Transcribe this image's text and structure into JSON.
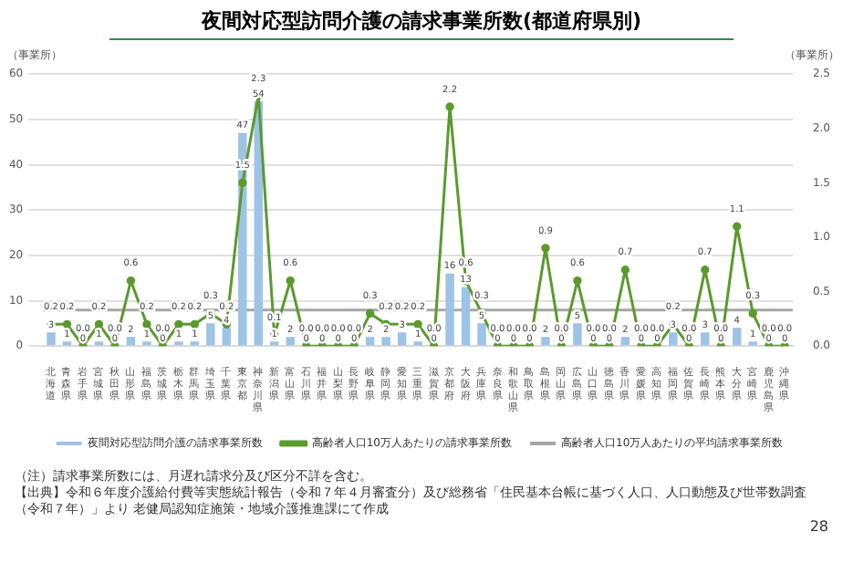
{
  "chart_data": {
    "type": "bar",
    "title": "夜間対応型訪問介護の請求事業所数(都道府県別)",
    "ylabel": "（事業所）",
    "y2label": "（事業所）",
    "categories": [
      "北海道",
      "青森県",
      "岩手県",
      "宮城県",
      "秋田県",
      "山形県",
      "福島県",
      "茨城県",
      "栃木県",
      "群馬県",
      "埼玉県",
      "千葉県",
      "東京都",
      "神奈川県",
      "新潟県",
      "富山県",
      "石川県",
      "福井県",
      "山梨県",
      "長野県",
      "岐阜県",
      "静岡県",
      "愛知県",
      "三重県",
      "滋賀県",
      "京都府",
      "大阪府",
      "兵庫県",
      "奈良県",
      "和歌山県",
      "鳥取県",
      "島根県",
      "岡山県",
      "広島県",
      "山口県",
      "徳島県",
      "香川県",
      "愛媛県",
      "高知県",
      "福岡県",
      "佐賀県",
      "長崎県",
      "熊本県",
      "大分県",
      "宮崎県",
      "鹿児島県",
      "沖縄県"
    ],
    "series": [
      {
        "name": "夜間対応型訪問介護の請求事業所数",
        "color": "#9dc3e6",
        "values": [
          3,
          1,
          0,
          1,
          0,
          2,
          1,
          0,
          1,
          1,
          5,
          4,
          47,
          54,
          1,
          2,
          0,
          0,
          0,
          0,
          2,
          2,
          3,
          1,
          0,
          16,
          13,
          5,
          0,
          0,
          0,
          2,
          0,
          5,
          0,
          0,
          2,
          0,
          0,
          3,
          0,
          3,
          0,
          4,
          1,
          0,
          0
        ],
        "value_labels": [
          "3",
          "1",
          "0",
          "1",
          "0",
          "2",
          "1",
          "0",
          "1",
          "1",
          "5",
          "4",
          "47",
          "54",
          "1",
          "2",
          "0",
          "0",
          "0",
          "0",
          "2",
          "2",
          "3",
          "1",
          "0",
          "16",
          "13",
          "5",
          "0",
          "0",
          "0",
          "2",
          "0",
          "5",
          "0",
          "0",
          "2",
          "0",
          "0",
          "3",
          "0",
          "3",
          "0",
          "4",
          "1",
          "0",
          "0"
        ]
      },
      {
        "name": "高齢者人口10万人あたりの請求事業所数",
        "type": "line",
        "axis": "y2",
        "color": "#5b9a2e",
        "marker": "circle",
        "values": [
          0.2,
          0.2,
          0.0,
          0.2,
          0.0,
          0.6,
          0.2,
          0.0,
          0.2,
          0.2,
          0.3,
          0.2,
          1.5,
          2.3,
          0.1,
          0.6,
          0.0,
          0.0,
          0.0,
          0.0,
          0.3,
          0.2,
          0.2,
          0.2,
          0.0,
          2.2,
          0.6,
          0.3,
          0.0,
          0.0,
          0.0,
          0.9,
          0.0,
          0.6,
          0.0,
          0.0,
          0.7,
          0.0,
          0.0,
          0.2,
          0.0,
          0.7,
          0.0,
          1.1,
          0.3,
          0.0,
          0.0
        ],
        "value_labels": [
          "0.2",
          "0.2",
          "0.0",
          "0.2",
          "0.0",
          "0.6",
          "0.2",
          "0.0",
          "0.2",
          "0.2",
          "0.3",
          "0.2",
          "1.5",
          "2.3",
          "0.1",
          "0.6",
          "0.0",
          "0.0",
          "0.0",
          "0.0",
          "0.3",
          "0.2",
          "0.2",
          "0.2",
          "0.0",
          "2.2",
          "0.6",
          "0.3",
          "0.0",
          "0.0",
          "0.0",
          "0.9",
          "0.0",
          "0.6",
          "0.0",
          "0.0",
          "0.7",
          "0.0",
          "0.0",
          "0.2",
          "0.0",
          "0.7",
          "0.0",
          "1.1",
          "0.3",
          "0.0",
          "0.0"
        ]
      }
    ],
    "ref_lines": [
      {
        "axis": "y2",
        "value": 0.33,
        "label": "高齢者人口10万人あたりの平均請求事業所数",
        "color": "#a6a6a6"
      }
    ],
    "ylim": [
      0,
      60
    ],
    "yticks": [
      0,
      10,
      20,
      30,
      40,
      50,
      60
    ],
    "y2lim": [
      0,
      2.5
    ],
    "y2ticks": [
      {
        "value": 0,
        "label": "0.0"
      },
      {
        "value": 0.5,
        "label": "0.5"
      },
      {
        "value": 1,
        "label": "1.0"
      },
      {
        "value": 1.5,
        "label": "1.5"
      },
      {
        "value": 2,
        "label": "2.0"
      },
      {
        "value": 2.5,
        "label": "2.5"
      }
    ],
    "grid": "y",
    "legend": "bottom",
    "annotations": [
      "（注）請求事業所数には、月遅れ請求分及び区分不詳を含む。",
      "【出典】令和６年度介護給付費等実態統計報告（令和７年４月審査分）及び総務省「住民基本台帳に基づく人口、人口動態及び世帯数調査（令和７年）」より 老健局認知症施策・地域介護推進課にて作成",
      "28"
    ]
  }
}
